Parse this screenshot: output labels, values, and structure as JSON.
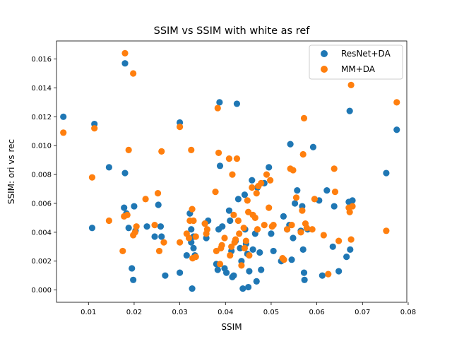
{
  "chart_data": {
    "type": "scatter",
    "title": "SSIM vs SSIM with white as ref",
    "xlabel": "SSIM",
    "ylabel": "SSIM: ori vs rec",
    "xlim": [
      0.003,
      0.0797
    ],
    "ylim": [
      -0.00085,
      0.01725
    ],
    "xticks": [
      0.01,
      0.02,
      0.03,
      0.04,
      0.05,
      0.06,
      0.07,
      0.08
    ],
    "xtick_labels": [
      "0.01",
      "0.02",
      "0.03",
      "0.04",
      "0.05",
      "0.06",
      "0.07",
      "0.08"
    ],
    "yticks": [
      0.0,
      0.002,
      0.004,
      0.006,
      0.008,
      0.01,
      0.012,
      0.014,
      0.016
    ],
    "ytick_labels": [
      "0.000",
      "0.002",
      "0.004",
      "0.006",
      "0.008",
      "0.010",
      "0.012",
      "0.014",
      "0.016"
    ],
    "grid": false,
    "legend_position": "top-right",
    "series": [
      {
        "name": "ResNet+DA",
        "color": "#1f77b4",
        "points": [
          [
            0.0045,
            0.012
          ],
          [
            0.0108,
            0.0043
          ],
          [
            0.0113,
            0.0115
          ],
          [
            0.0145,
            0.0085
          ],
          [
            0.0178,
            0.0057
          ],
          [
            0.018,
            0.0081
          ],
          [
            0.018,
            0.0157
          ],
          [
            0.0183,
            0.0053
          ],
          [
            0.0188,
            0.0043
          ],
          [
            0.0195,
            0.0015
          ],
          [
            0.0198,
            0.0007
          ],
          [
            0.02,
            0.0058
          ],
          [
            0.0203,
            0.0041
          ],
          [
            0.0228,
            0.0044
          ],
          [
            0.0245,
            0.0037
          ],
          [
            0.0253,
            0.0059
          ],
          [
            0.0258,
            0.0044
          ],
          [
            0.026,
            0.0037
          ],
          [
            0.0268,
            0.001
          ],
          [
            0.03,
            0.0012
          ],
          [
            0.03,
            0.0116
          ],
          [
            0.0315,
            0.0024
          ],
          [
            0.0322,
            0.0053
          ],
          [
            0.0325,
            0.0042
          ],
          [
            0.0325,
            0.0033
          ],
          [
            0.0327,
            0.0001
          ],
          [
            0.033,
            0.0029
          ],
          [
            0.033,
            0.0037
          ],
          [
            0.0333,
            0.0024
          ],
          [
            0.0355,
            0.0046
          ],
          [
            0.0358,
            0.0036
          ],
          [
            0.0362,
            0.0048
          ],
          [
            0.038,
            0.0018
          ],
          [
            0.0383,
            0.0014
          ],
          [
            0.0385,
            0.0042
          ],
          [
            0.0387,
            0.013
          ],
          [
            0.0388,
            0.0086
          ],
          [
            0.0393,
            0.0044
          ],
          [
            0.0398,
            0.0015
          ],
          [
            0.0402,
            0.0012
          ],
          [
            0.0408,
            0.0055
          ],
          [
            0.041,
            0.0048
          ],
          [
            0.0413,
            0.0027
          ],
          [
            0.0415,
            0.0009
          ],
          [
            0.0418,
            0.001
          ],
          [
            0.0422,
            0.0034
          ],
          [
            0.0425,
            0.0129
          ],
          [
            0.0428,
            0.0063
          ],
          [
            0.0432,
            0.0029
          ],
          [
            0.0435,
            0.002
          ],
          [
            0.0438,
            0.0001
          ],
          [
            0.0442,
            0.0066
          ],
          [
            0.0443,
            0.0042
          ],
          [
            0.0445,
            0.0032
          ],
          [
            0.0448,
            0.0025
          ],
          [
            0.045,
            0.0002
          ],
          [
            0.0452,
            0.0013
          ],
          [
            0.0458,
            0.0076
          ],
          [
            0.046,
            0.0028
          ],
          [
            0.0465,
            0.0039
          ],
          [
            0.0468,
            0.0006
          ],
          [
            0.047,
            0.0071
          ],
          [
            0.0475,
            0.0026
          ],
          [
            0.0478,
            0.0014
          ],
          [
            0.0485,
            0.0074
          ],
          [
            0.0495,
            0.0085
          ],
          [
            0.05,
            0.0039
          ],
          [
            0.0505,
            0.0027
          ],
          [
            0.0522,
            0.002
          ],
          [
            0.0527,
            0.0051
          ],
          [
            0.0535,
            0.0042
          ],
          [
            0.054,
            0.0045
          ],
          [
            0.0542,
            0.0101
          ],
          [
            0.0545,
            0.0021
          ],
          [
            0.0548,
            0.0036
          ],
          [
            0.0552,
            0.006
          ],
          [
            0.0557,
            0.0069
          ],
          [
            0.0565,
            0.0041
          ],
          [
            0.0568,
            0.0058
          ],
          [
            0.057,
            0.0028
          ],
          [
            0.0572,
            0.0012
          ],
          [
            0.0573,
            0.0007
          ],
          [
            0.058,
            0.0042
          ],
          [
            0.0592,
            0.0099
          ],
          [
            0.0605,
            0.0062
          ],
          [
            0.0612,
            0.001
          ],
          [
            0.0622,
            0.0069
          ],
          [
            0.0635,
            0.003
          ],
          [
            0.0638,
            0.0058
          ],
          [
            0.0648,
            0.0013
          ],
          [
            0.0665,
            0.0023
          ],
          [
            0.067,
            0.0061
          ],
          [
            0.0672,
            0.0124
          ],
          [
            0.0673,
            0.0028
          ],
          [
            0.0678,
            0.0062
          ],
          [
            0.0752,
            0.0081
          ],
          [
            0.0775,
            0.0111
          ]
        ]
      },
      {
        "name": "MM+DA",
        "color": "#ff7f0e",
        "points": [
          [
            0.0045,
            0.0109
          ],
          [
            0.0108,
            0.0078
          ],
          [
            0.0113,
            0.0112
          ],
          [
            0.0145,
            0.0048
          ],
          [
            0.0175,
            0.0027
          ],
          [
            0.0178,
            0.0051
          ],
          [
            0.018,
            0.0164
          ],
          [
            0.0185,
            0.0052
          ],
          [
            0.0188,
            0.0097
          ],
          [
            0.0198,
            0.0038
          ],
          [
            0.0198,
            0.015
          ],
          [
            0.0202,
            0.004
          ],
          [
            0.0205,
            0.0044
          ],
          [
            0.0225,
            0.0063
          ],
          [
            0.0245,
            0.0045
          ],
          [
            0.0252,
            0.0067
          ],
          [
            0.0255,
            0.0027
          ],
          [
            0.026,
            0.0096
          ],
          [
            0.0265,
            0.0033
          ],
          [
            0.03,
            0.0033
          ],
          [
            0.03,
            0.0113
          ],
          [
            0.0315,
            0.0039
          ],
          [
            0.032,
            0.0036
          ],
          [
            0.0322,
            0.0048
          ],
          [
            0.0325,
            0.0097
          ],
          [
            0.0327,
            0.0056
          ],
          [
            0.0328,
            0.0022
          ],
          [
            0.033,
            0.0048
          ],
          [
            0.0335,
            0.0037
          ],
          [
            0.0335,
            0.0023
          ],
          [
            0.0355,
            0.0046
          ],
          [
            0.0358,
            0.0039
          ],
          [
            0.036,
            0.0042
          ],
          [
            0.0378,
            0.0068
          ],
          [
            0.038,
            0.0027
          ],
          [
            0.0383,
            0.0126
          ],
          [
            0.0385,
            0.0095
          ],
          [
            0.0388,
            0.0018
          ],
          [
            0.039,
            0.0029
          ],
          [
            0.0392,
            0.0031
          ],
          [
            0.0398,
            0.0036
          ],
          [
            0.0408,
            0.0091
          ],
          [
            0.041,
            0.0024
          ],
          [
            0.0413,
            0.003
          ],
          [
            0.0415,
            0.008
          ],
          [
            0.0418,
            0.0052
          ],
          [
            0.042,
            0.0033
          ],
          [
            0.0422,
            0.0035
          ],
          [
            0.0425,
            0.0091
          ],
          [
            0.0428,
            0.0048
          ],
          [
            0.043,
            0.0039
          ],
          [
            0.0435,
            0.0017
          ],
          [
            0.044,
            0.0043
          ],
          [
            0.0442,
            0.0029
          ],
          [
            0.0445,
            0.0034
          ],
          [
            0.0448,
            0.0062
          ],
          [
            0.045,
            0.0054
          ],
          [
            0.0452,
            0.0024
          ],
          [
            0.0458,
            0.0071
          ],
          [
            0.046,
            0.0052
          ],
          [
            0.0465,
            0.005
          ],
          [
            0.0468,
            0.0067
          ],
          [
            0.047,
            0.0042
          ],
          [
            0.0472,
            0.0072
          ],
          [
            0.0478,
            0.0074
          ],
          [
            0.0485,
            0.0045
          ],
          [
            0.049,
            0.008
          ],
          [
            0.0495,
            0.0057
          ],
          [
            0.0498,
            0.0076
          ],
          [
            0.0502,
            0.0044
          ],
          [
            0.0505,
            0.0045
          ],
          [
            0.0525,
            0.0022
          ],
          [
            0.0528,
            0.0021
          ],
          [
            0.0535,
            0.0042
          ],
          [
            0.0542,
            0.0084
          ],
          [
            0.0545,
            0.0045
          ],
          [
            0.0548,
            0.0083
          ],
          [
            0.0555,
            0.0064
          ],
          [
            0.0565,
            0.004
          ],
          [
            0.0568,
            0.0055
          ],
          [
            0.057,
            0.0094
          ],
          [
            0.0572,
            0.0119
          ],
          [
            0.0575,
            0.0046
          ],
          [
            0.0578,
            0.0043
          ],
          [
            0.059,
            0.0042
          ],
          [
            0.0595,
            0.0063
          ],
          [
            0.0615,
            0.0038
          ],
          [
            0.0625,
            0.0011
          ],
          [
            0.0638,
            0.0084
          ],
          [
            0.064,
            0.0068
          ],
          [
            0.0648,
            0.0034
          ],
          [
            0.067,
            0.0057
          ],
          [
            0.0672,
            0.0054
          ],
          [
            0.0675,
            0.0142
          ],
          [
            0.0675,
            0.0035
          ],
          [
            0.0678,
            0.0058
          ],
          [
            0.0752,
            0.0041
          ],
          [
            0.0775,
            0.013
          ]
        ]
      }
    ]
  }
}
